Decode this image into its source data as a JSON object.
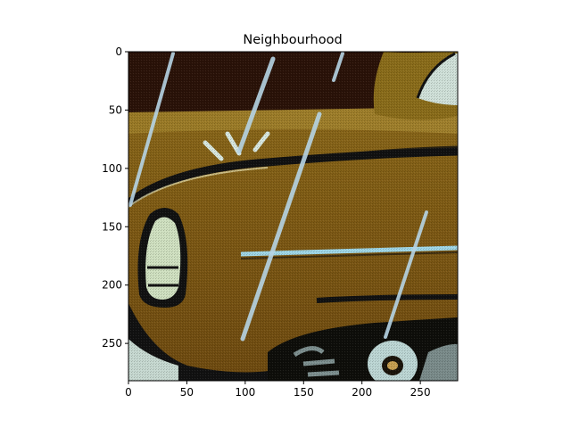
{
  "chart_data": {
    "type": "heatmap",
    "title": "Neighbourhood",
    "xlabel": "",
    "ylabel": "",
    "image_size": [
      282,
      282
    ],
    "xlim": [
      0,
      282
    ],
    "ylim": [
      282,
      0
    ],
    "y_axis_inverted": true,
    "grid": false,
    "x_ticks": [
      0,
      50,
      100,
      150,
      200,
      250
    ],
    "y_ticks": [
      0,
      50,
      100,
      150,
      200,
      250
    ],
    "content": "illustration-close-up-of-yellow-car-in-rain"
  }
}
